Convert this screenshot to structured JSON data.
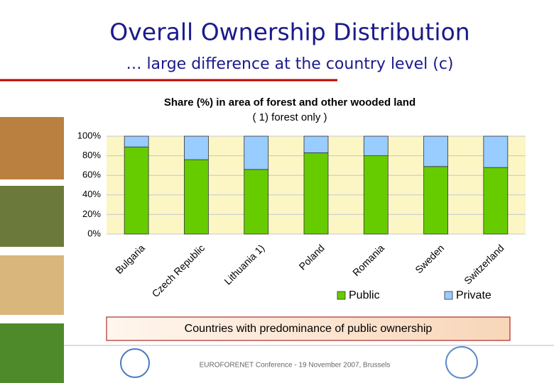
{
  "slide": {
    "title": "Overall Ownership Distribution",
    "subtitle": "… large difference at the country level (c)",
    "callout": "Countries with predominance of public ownership",
    "footer": "EUROFORENET Conference - 19 November 2007, Brussels"
  },
  "chart_data": {
    "type": "stacked_bar",
    "title": "Share (%) in area of forest and other wooded land",
    "subtitle": "( 1) forest only )",
    "categories": [
      "Bulgaria",
      "Czech Republic",
      "Lithuania 1)",
      "Poland",
      "Romania",
      "Sweden",
      "Switzerland"
    ],
    "series": [
      {
        "name": "Public",
        "color": "#66cc00",
        "values": [
          89,
          76,
          66,
          83,
          80,
          69,
          68
        ]
      },
      {
        "name": "Private",
        "color": "#99ccff",
        "values": [
          11,
          24,
          34,
          17,
          20,
          31,
          32
        ]
      }
    ],
    "ylim": [
      0,
      100
    ],
    "yticks": [
      {
        "value": 0,
        "label": "0%"
      },
      {
        "value": 20,
        "label": "20%"
      },
      {
        "value": 40,
        "label": "40%"
      },
      {
        "value": 60,
        "label": "60%"
      },
      {
        "value": 80,
        "label": "80%"
      },
      {
        "value": 100,
        "label": "100%"
      }
    ],
    "grid": true,
    "legend": "bottom"
  }
}
